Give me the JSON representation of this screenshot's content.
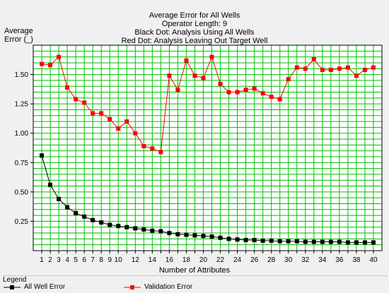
{
  "chart_data": {
    "type": "line",
    "title_lines": [
      "Average Error for All Wells",
      "Operator Length: 9",
      "Black Dot: Analysis Using All Wells",
      "Red Dot: Analysis Leaving Out Target Well"
    ],
    "ylabel_lines": [
      "Average",
      "Error (_)"
    ],
    "xlabel": "Number of Attributes",
    "x": [
      1,
      2,
      3,
      4,
      5,
      6,
      7,
      8,
      9,
      10,
      11,
      12,
      13,
      14,
      15,
      16,
      17,
      18,
      19,
      20,
      21,
      22,
      23,
      24,
      25,
      26,
      27,
      28,
      29,
      30,
      31,
      32,
      33,
      34,
      35,
      36,
      37,
      38,
      39,
      40
    ],
    "xticks": [
      1,
      2,
      3,
      4,
      5,
      6,
      7,
      8,
      9,
      10,
      12,
      14,
      16,
      18,
      20,
      22,
      24,
      26,
      28,
      30,
      32,
      34,
      36,
      38,
      40
    ],
    "xlim": [
      0,
      41
    ],
    "ylim": [
      0,
      1.75
    ],
    "yticks": [
      0.25,
      0.5,
      0.75,
      1.0,
      1.25,
      1.5
    ],
    "ytick_labels": [
      "0.25",
      "0.50",
      "0.75",
      "1.00",
      "1.25",
      "1.50"
    ],
    "grid": true,
    "grid_color": "#00c000",
    "plot_background": "#ffffff",
    "legend_position": "bottom-left",
    "series": [
      {
        "name": "All Well Error",
        "color": "#000000",
        "values": [
          0.81,
          0.56,
          0.44,
          0.37,
          0.32,
          0.29,
          0.26,
          0.24,
          0.22,
          0.21,
          0.2,
          0.19,
          0.18,
          0.17,
          0.165,
          0.15,
          0.14,
          0.135,
          0.13,
          0.125,
          0.12,
          0.11,
          0.1,
          0.095,
          0.09,
          0.09,
          0.085,
          0.085,
          0.08,
          0.08,
          0.08,
          0.075,
          0.075,
          0.075,
          0.075,
          0.075,
          0.07,
          0.07,
          0.07,
          0.07
        ]
      },
      {
        "name": "Validation Error",
        "color": "#ff0000",
        "values": [
          1.59,
          1.58,
          1.65,
          1.39,
          1.29,
          1.26,
          1.17,
          1.17,
          1.12,
          1.04,
          1.1,
          1.0,
          0.89,
          0.87,
          0.84,
          1.49,
          1.37,
          1.62,
          1.49,
          1.47,
          1.65,
          1.42,
          1.35,
          1.35,
          1.37,
          1.38,
          1.34,
          1.31,
          1.29,
          1.46,
          1.56,
          1.55,
          1.63,
          1.54,
          1.54,
          1.55,
          1.56,
          1.49,
          1.54,
          1.56
        ]
      }
    ]
  },
  "legend": {
    "title": "Legend",
    "items": [
      {
        "label": "All Well Error",
        "color": "#000000"
      },
      {
        "label": "Validation Error",
        "color": "#ff0000"
      }
    ]
  }
}
